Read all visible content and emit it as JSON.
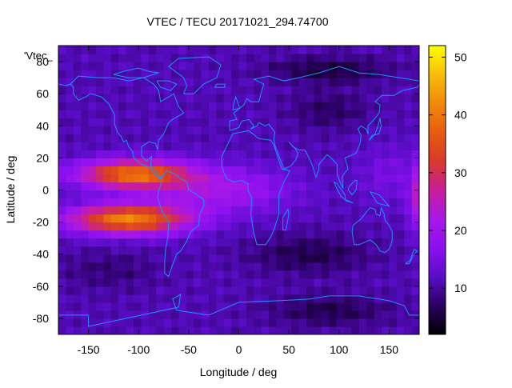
{
  "chart_data": {
    "type": "heatmap",
    "title": "VTEC / TECU 20171021_294.74700",
    "xlabel": "Longitude / deg",
    "ylabel": "Latitude / deg",
    "key_label": "'Vtec_",
    "xlim": [
      -180,
      180
    ],
    "ylim": [
      -90,
      90
    ],
    "x_ticks": [
      -150,
      -100,
      -50,
      0,
      50,
      100,
      150
    ],
    "y_ticks": [
      -80,
      -60,
      -40,
      -20,
      0,
      20,
      40,
      60,
      80
    ],
    "colorbar": {
      "range": [
        2,
        52
      ],
      "ticks": [
        10,
        20,
        30,
        40,
        50
      ],
      "palette": [
        "#000000",
        "#2a0060",
        "#5a0dc8",
        "#8c10f0",
        "#a818e8",
        "#c81e9a",
        "#d83a2a",
        "#e85c10",
        "#f08a08",
        "#f8bc08",
        "#ffff00"
      ]
    },
    "grid_step_deg": [
      7.5,
      5
    ],
    "field_model": {
      "background": 11,
      "features": [
        {
          "name": "pacific-anomaly-north",
          "lon": -105,
          "lat": 10,
          "peak": 28,
          "width": [
            55,
            9
          ]
        },
        {
          "name": "pacific-anomaly-south",
          "lon": -110,
          "lat": -18,
          "peak": 30,
          "width": [
            60,
            9
          ]
        },
        {
          "name": "equatorial-band",
          "lon": -20,
          "lat": 0,
          "peak": 10,
          "width": [
            70,
            14
          ]
        },
        {
          "name": "east-edge-peak",
          "lon": 185,
          "lat": -5,
          "peak": 22,
          "width": [
            12,
            20
          ]
        },
        {
          "name": "arctic-low",
          "lon": 90,
          "lat": 75,
          "peak": -6,
          "width": [
            60,
            8
          ]
        },
        {
          "name": "asia-low",
          "lon": 90,
          "lat": 50,
          "peak": -4,
          "width": [
            40,
            12
          ]
        },
        {
          "name": "south-indian-low",
          "lon": 70,
          "lat": -40,
          "peak": -5,
          "width": [
            60,
            12
          ]
        },
        {
          "name": "south-pacific-low",
          "lon": -130,
          "lat": -50,
          "peak": -3,
          "width": [
            50,
            12
          ]
        },
        {
          "name": "antarctic-low",
          "lon": 90,
          "lat": -75,
          "peak": -5,
          "width": [
            60,
            10
          ]
        },
        {
          "name": "west-pacific-high",
          "lon": 150,
          "lat": 10,
          "peak": 4,
          "width": [
            30,
            18
          ]
        }
      ]
    }
  }
}
